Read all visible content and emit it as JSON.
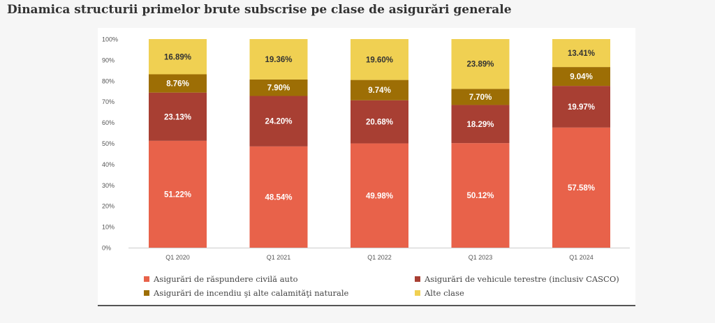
{
  "page": {
    "title": "Dinamica structurii primelor brute subscrise pe clase de asigurări generale"
  },
  "chart_data": {
    "type": "bar",
    "stacked": true,
    "title": "Dinamica structurii primelor brute subscrise pe clase de asigurări generale",
    "categories": [
      "Q1 2020",
      "Q1 2021",
      "Q1 2022",
      "Q1 2023",
      "Q1 2024"
    ],
    "series": [
      {
        "name": "Asigurări de răspundere civilă auto",
        "color": "#e8624a",
        "values": [
          51.22,
          48.54,
          49.98,
          50.12,
          57.58
        ],
        "labels": [
          "51.22%",
          "48.54%",
          "49.98%",
          "50.12%",
          "57.58%"
        ]
      },
      {
        "name": "Asigurări de vehicule terestre (inclusiv CASCO)",
        "color": "#a83f33",
        "values": [
          23.13,
          24.2,
          20.68,
          18.29,
          19.97
        ],
        "labels": [
          "23.13%",
          "24.20%",
          "20.68%",
          "18.29%",
          "19.97%"
        ]
      },
      {
        "name": "Asigurări de incendiu şi alte calamităţi naturale",
        "color": "#9d6e05",
        "values": [
          8.76,
          7.9,
          9.74,
          7.7,
          9.04
        ],
        "labels": [
          "8.76%",
          "7.90%",
          "9.74%",
          "7.70%",
          "9.04%"
        ]
      },
      {
        "name": "Alte clase",
        "color": "#f0d052",
        "values": [
          16.89,
          19.36,
          19.6,
          23.89,
          13.41
        ],
        "labels": [
          "16.89%",
          "19.36%",
          "19.60%",
          "23.89%",
          "13.41%"
        ]
      }
    ],
    "y_ticks": [
      "0%",
      "10%",
      "20%",
      "30%",
      "40%",
      "50%",
      "60%",
      "70%",
      "80%",
      "90%",
      "100%"
    ],
    "ylim": [
      0,
      100
    ],
    "grid": false,
    "legend_position": "bottom"
  }
}
